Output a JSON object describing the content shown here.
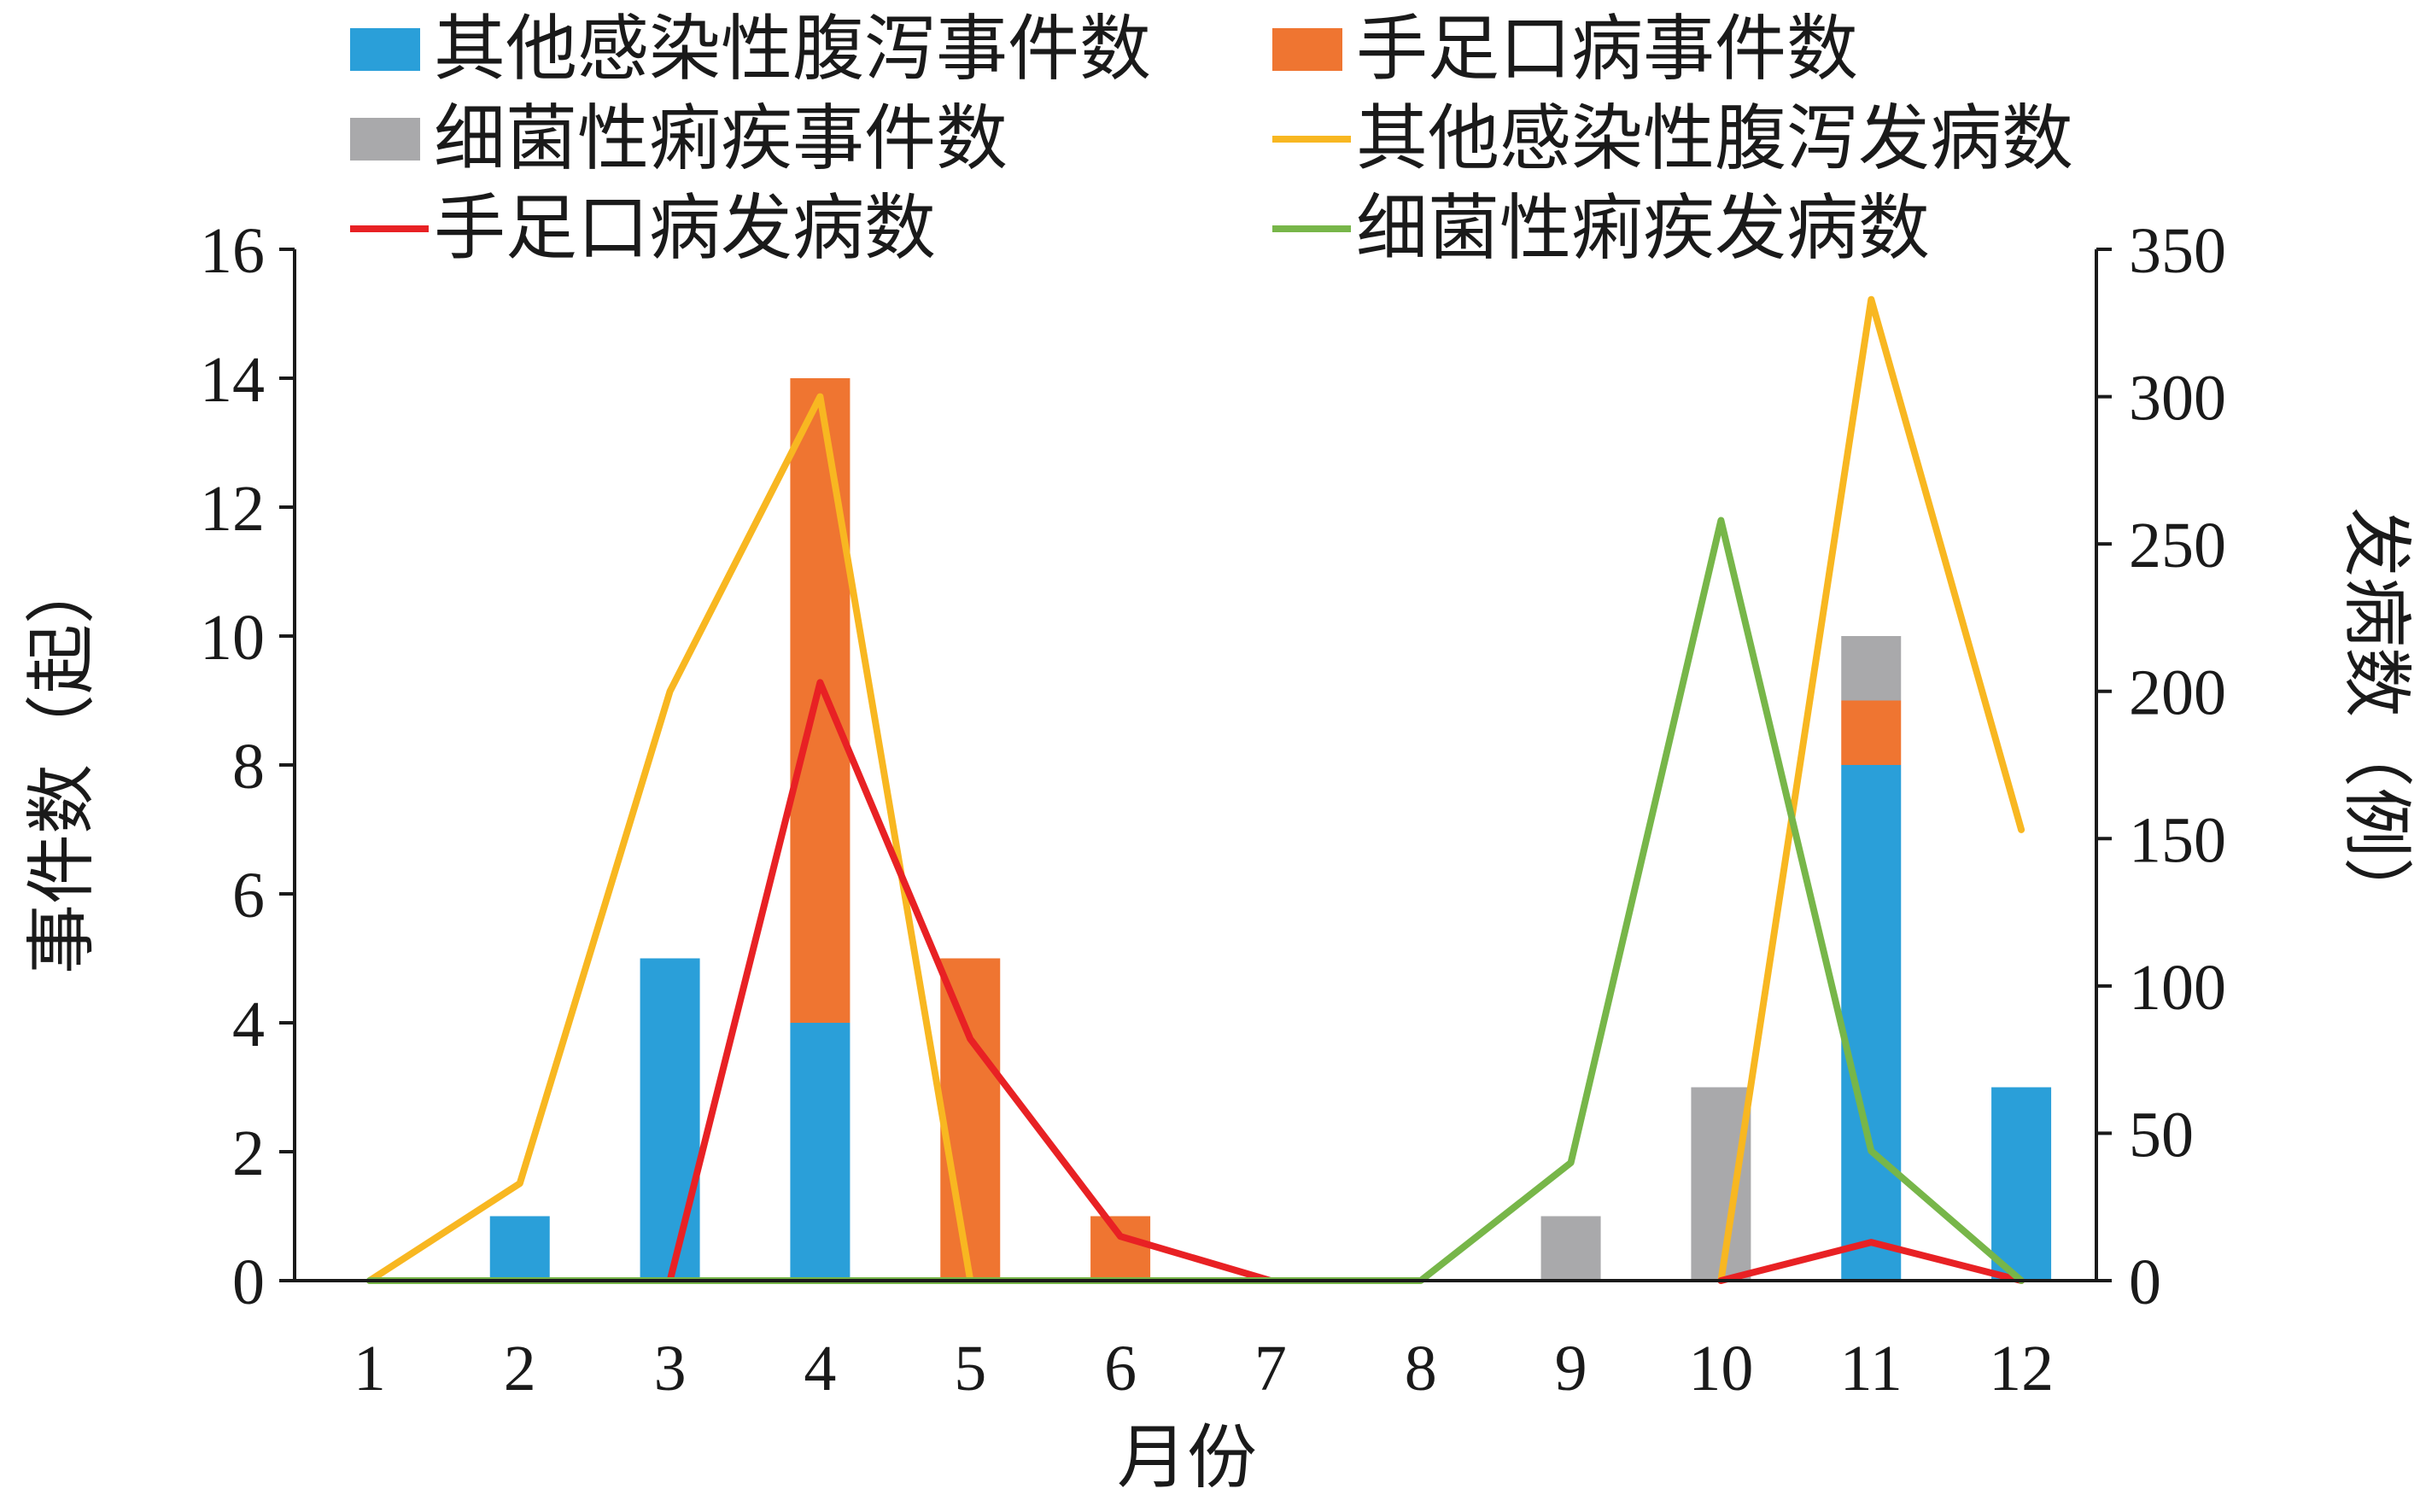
{
  "chart_data": {
    "type": "bar",
    "categories": [
      "1",
      "2",
      "3",
      "4",
      "5",
      "6",
      "7",
      "8",
      "9",
      "10",
      "11",
      "12"
    ],
    "xlabel": "月份",
    "ylabel": "事件数（起）",
    "y2label": "发病数（例）",
    "ylim": [
      0,
      16
    ],
    "yticks": [
      0,
      2,
      4,
      6,
      8,
      10,
      12,
      14,
      16
    ],
    "y2lim": [
      0,
      350
    ],
    "y2ticks": [
      0,
      50,
      100,
      150,
      200,
      250,
      300,
      350
    ],
    "stacked": true,
    "grid": false,
    "legend_position": "top",
    "bar_series": [
      {
        "name": "其他感染性腹泻事件数",
        "color": "#2a9fd9",
        "values": [
          0,
          1,
          5,
          4,
          0,
          0,
          0,
          0,
          0,
          0,
          8,
          3
        ]
      },
      {
        "name": "手足口病事件数",
        "color": "#ef7531",
        "values": [
          0,
          0,
          0,
          10,
          5,
          1,
          0,
          0,
          0,
          0,
          1,
          0
        ]
      },
      {
        "name": "细菌性痢疾事件数",
        "color": "#a9a9ab",
        "values": [
          0,
          0,
          0,
          0,
          0,
          0,
          0,
          0,
          1,
          3,
          1,
          0
        ]
      }
    ],
    "line_series": [
      {
        "name": "其他感染性腹泻发病数",
        "color": "#f8b721",
        "axis": "right",
        "values": [
          0,
          33,
          200,
          300,
          0,
          null,
          null,
          null,
          null,
          0,
          333,
          153
        ]
      },
      {
        "name": "手足口病发病数",
        "color": "#e82124",
        "axis": "right",
        "values": [
          null,
          null,
          0,
          203,
          82,
          15,
          0,
          null,
          null,
          0,
          13,
          0
        ]
      },
      {
        "name": "细菌性痢疾发病数",
        "color": "#77b649",
        "axis": "right",
        "values": [
          0,
          0,
          0,
          0,
          0,
          0,
          0,
          0,
          40,
          258,
          44,
          0
        ]
      }
    ]
  }
}
